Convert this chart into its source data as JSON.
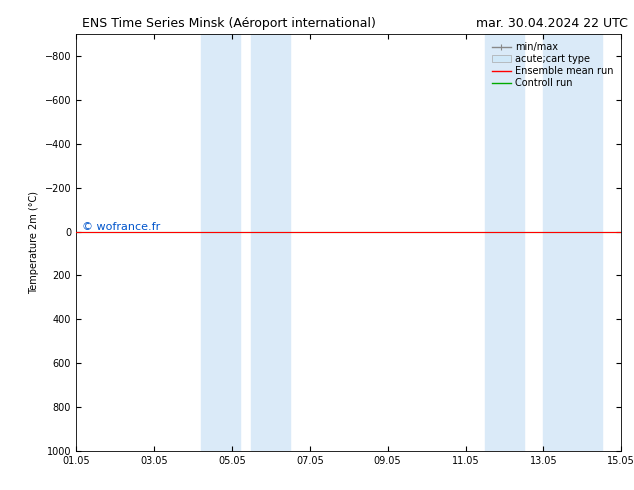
{
  "title_left": "ENS Time Series Minsk (Aéroport international)",
  "title_right": "mar. 30.04.2024 22 UTC",
  "ylabel": "Temperature 2m (°C)",
  "xlim": [
    0,
    14
  ],
  "ylim": [
    1000,
    -900
  ],
  "yticks": [
    -800,
    -600,
    -400,
    -200,
    0,
    200,
    400,
    600,
    800,
    1000
  ],
  "xtick_labels": [
    "01.05",
    "03.05",
    "05.05",
    "07.05",
    "09.05",
    "11.05",
    "13.05",
    "15.05"
  ],
  "xtick_positions": [
    0,
    2,
    4,
    6,
    8,
    10,
    12,
    14
  ],
  "blue_bands": [
    [
      3.2,
      4.2
    ],
    [
      4.5,
      5.5
    ],
    [
      10.5,
      11.5
    ],
    [
      12.0,
      13.5
    ]
  ],
  "green_line_y": 0,
  "red_line_y": 0,
  "watermark": "© wofrance.fr",
  "watermark_color": "#0055CC",
  "legend_items": [
    "min/max",
    "acute;cart type",
    "Ensemble mean run",
    "Controll run"
  ],
  "legend_line_color": "#888888",
  "legend_patch_color": "#d0e8f8",
  "legend_red": "#ff0000",
  "legend_green": "#00aa00",
  "background_color": "#ffffff",
  "title_fontsize": 9,
  "axis_fontsize": 7,
  "legend_fontsize": 7
}
